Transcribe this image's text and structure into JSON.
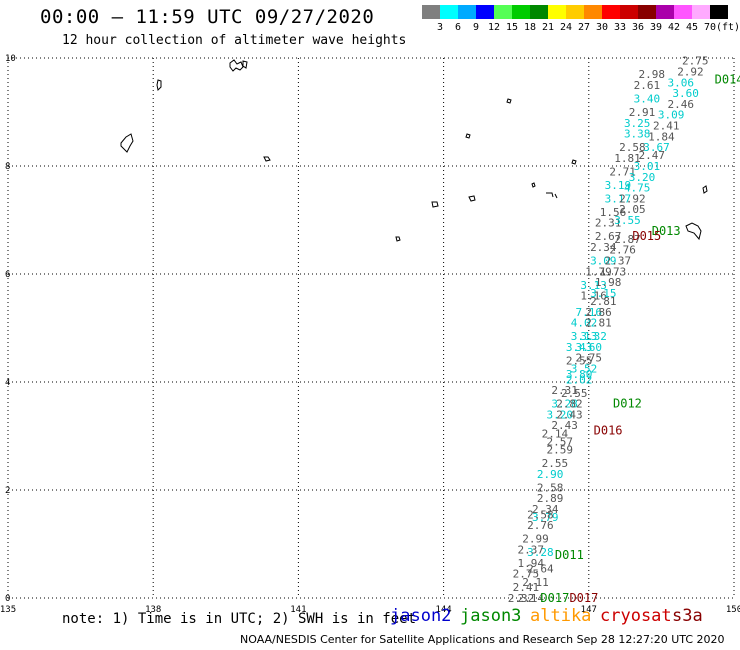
{
  "header": {
    "title": "00:00 – 11:59 UTC 09/27/2020",
    "subtitle": "12 hour collection of altimeter wave heights"
  },
  "colorbar": {
    "colors": [
      "#7f7f7f",
      "#00ffff",
      "#00aaff",
      "#0000ff",
      "#55ff55",
      "#00cc00",
      "#008800",
      "#ffff00",
      "#ffcc00",
      "#ff8800",
      "#ff0000",
      "#cc0000",
      "#880000",
      "#aa00aa",
      "#ff55ff",
      "#ffaaff",
      "#000000"
    ],
    "labels": [
      "3",
      "6",
      "9",
      "12",
      "15",
      "18",
      "21",
      "24",
      "27",
      "30",
      "33",
      "36",
      "39",
      "42",
      "45",
      "70",
      "(ft)"
    ]
  },
  "axes": {
    "x_ticks": [
      "135",
      "138",
      "141",
      "144",
      "147",
      "150"
    ],
    "y_ticks": [
      "0",
      "2",
      "4",
      "6",
      "8",
      "10"
    ],
    "grid": "dotted"
  },
  "track_labels": [
    {
      "text": "D014",
      "color": "#008800",
      "lon": 149.6,
      "lat": 9.6
    },
    {
      "text": "D013",
      "color": "#008800",
      "lon": 148.3,
      "lat": 6.8
    },
    {
      "text": "D015",
      "color": "#880000",
      "lon": 147.9,
      "lat": 6.7
    },
    {
      "text": "D012",
      "color": "#008800",
      "lon": 147.5,
      "lat": 3.6
    },
    {
      "text": "D016",
      "color": "#880000",
      "lon": 147.1,
      "lat": 3.1
    },
    {
      "text": "D011",
      "color": "#008800",
      "lon": 146.3,
      "lat": 0.8
    },
    {
      "text": "D017",
      "color": "#880000",
      "lon": 146.6,
      "lat": 0.0
    },
    {
      "text": "D017",
      "color": "#008800",
      "lon": 146.0,
      "lat": 0.0
    }
  ],
  "observations": [
    {
      "v": "2.75",
      "lon": 149.2,
      "lat": 9.95,
      "c": "#555555"
    },
    {
      "v": "2.92",
      "lon": 149.1,
      "lat": 9.75,
      "c": "#555555"
    },
    {
      "v": "2.98",
      "lon": 148.3,
      "lat": 9.7,
      "c": "#555555"
    },
    {
      "v": "3.06",
      "lon": 148.9,
      "lat": 9.55,
      "c": "#00cccc"
    },
    {
      "v": "2.61",
      "lon": 148.2,
      "lat": 9.5,
      "c": "#555555"
    },
    {
      "v": "3.60",
      "lon": 149.0,
      "lat": 9.35,
      "c": "#00cccc"
    },
    {
      "v": "3.40",
      "lon": 148.2,
      "lat": 9.25,
      "c": "#00cccc"
    },
    {
      "v": "2.46",
      "lon": 148.9,
      "lat": 9.15,
      "c": "#555555"
    },
    {
      "v": "2.91",
      "lon": 148.1,
      "lat": 9.0,
      "c": "#555555"
    },
    {
      "v": "3.09",
      "lon": 148.7,
      "lat": 8.95,
      "c": "#00cccc"
    },
    {
      "v": "3.25",
      "lon": 148.0,
      "lat": 8.8,
      "c": "#00cccc"
    },
    {
      "v": "2.41",
      "lon": 148.6,
      "lat": 8.75,
      "c": "#555555"
    },
    {
      "v": "3.38",
      "lon": 148.0,
      "lat": 8.6,
      "c": "#00cccc"
    },
    {
      "v": "1.84",
      "lon": 148.5,
      "lat": 8.55,
      "c": "#555555"
    },
    {
      "v": "2.58",
      "lon": 147.9,
      "lat": 8.35,
      "c": "#555555"
    },
    {
      "v": "3.67",
      "lon": 148.4,
      "lat": 8.35,
      "c": "#00cccc"
    },
    {
      "v": "2.47",
      "lon": 148.3,
      "lat": 8.2,
      "c": "#555555"
    },
    {
      "v": "1.81",
      "lon": 147.8,
      "lat": 8.15,
      "c": "#555555"
    },
    {
      "v": "3.01",
      "lon": 148.2,
      "lat": 8.0,
      "c": "#00cccc"
    },
    {
      "v": "2.71",
      "lon": 147.7,
      "lat": 7.9,
      "c": "#555555"
    },
    {
      "v": "3.20",
      "lon": 148.1,
      "lat": 7.8,
      "c": "#00cccc"
    },
    {
      "v": "3.19",
      "lon": 147.6,
      "lat": 7.65,
      "c": "#00cccc"
    },
    {
      "v": "4.75",
      "lon": 148.0,
      "lat": 7.6,
      "c": "#00cccc"
    },
    {
      "v": "3.17",
      "lon": 147.6,
      "lat": 7.4,
      "c": "#00cccc"
    },
    {
      "v": "2.92",
      "lon": 147.9,
      "lat": 7.4,
      "c": "#555555"
    },
    {
      "v": "1.56",
      "lon": 147.5,
      "lat": 7.15,
      "c": "#555555"
    },
    {
      "v": "2.05",
      "lon": 147.9,
      "lat": 7.2,
      "c": "#555555"
    },
    {
      "v": "2.31",
      "lon": 147.4,
      "lat": 6.95,
      "c": "#555555"
    },
    {
      "v": "3.55",
      "lon": 147.8,
      "lat": 7.0,
      "c": "#00cccc"
    },
    {
      "v": "2.67",
      "lon": 147.4,
      "lat": 6.7,
      "c": "#555555"
    },
    {
      "v": "2.87",
      "lon": 147.8,
      "lat": 6.65,
      "c": "#555555"
    },
    {
      "v": "2.34",
      "lon": 147.3,
      "lat": 6.5,
      "c": "#555555"
    },
    {
      "v": "2.76",
      "lon": 147.7,
      "lat": 6.45,
      "c": "#555555"
    },
    {
      "v": "3.09",
      "lon": 147.3,
      "lat": 6.25,
      "c": "#00cccc"
    },
    {
      "v": "2.37",
      "lon": 147.6,
      "lat": 6.25,
      "c": "#555555"
    },
    {
      "v": "1.79",
      "lon": 147.2,
      "lat": 6.05,
      "c": "#555555"
    },
    {
      "v": "1.73",
      "lon": 147.5,
      "lat": 6.05,
      "c": "#555555"
    },
    {
      "v": "3.13",
      "lon": 147.1,
      "lat": 5.8,
      "c": "#00cccc"
    },
    {
      "v": "1.98",
      "lon": 147.4,
      "lat": 5.85,
      "c": "#555555"
    },
    {
      "v": "1.16",
      "lon": 147.1,
      "lat": 5.6,
      "c": "#555555"
    },
    {
      "v": "3.15",
      "lon": 147.3,
      "lat": 5.65,
      "c": "#00cccc"
    },
    {
      "v": "2.81",
      "lon": 147.3,
      "lat": 5.5,
      "c": "#555555"
    },
    {
      "v": "7.16",
      "lon": 147.0,
      "lat": 5.3,
      "c": "#00cccc"
    },
    {
      "v": "2.86",
      "lon": 147.2,
      "lat": 5.3,
      "c": "#555555"
    },
    {
      "v": "4.02",
      "lon": 146.9,
      "lat": 5.1,
      "c": "#00cccc"
    },
    {
      "v": "2.81",
      "lon": 147.2,
      "lat": 5.1,
      "c": "#555555"
    },
    {
      "v": "3.13",
      "lon": 146.9,
      "lat": 4.85,
      "c": "#00cccc"
    },
    {
      "v": "3.32",
      "lon": 147.1,
      "lat": 4.85,
      "c": "#00cccc"
    },
    {
      "v": "3.43",
      "lon": 146.8,
      "lat": 4.65,
      "c": "#00cccc"
    },
    {
      "v": "3.60",
      "lon": 147.0,
      "lat": 4.65,
      "c": "#00cccc"
    },
    {
      "v": "2.55",
      "lon": 146.8,
      "lat": 4.4,
      "c": "#555555"
    },
    {
      "v": "2.75",
      "lon": 147.0,
      "lat": 4.45,
      "c": "#555555"
    },
    {
      "v": "3.52",
      "lon": 146.9,
      "lat": 4.25,
      "c": "#00cccc"
    },
    {
      "v": "3.80",
      "lon": 146.8,
      "lat": 4.15,
      "c": "#00cccc"
    },
    {
      "v": "2.02",
      "lon": 146.8,
      "lat": 4.05,
      "c": "#00cccc"
    },
    {
      "v": "2.31",
      "lon": 146.5,
      "lat": 3.85,
      "c": "#555555"
    },
    {
      "v": "2.55",
      "lon": 146.7,
      "lat": 3.8,
      "c": "#555555"
    },
    {
      "v": "3.28",
      "lon": 146.5,
      "lat": 3.6,
      "c": "#00cccc"
    },
    {
      "v": "2.82",
      "lon": 146.6,
      "lat": 3.6,
      "c": "#555555"
    },
    {
      "v": "3.20",
      "lon": 146.4,
      "lat": 3.4,
      "c": "#00cccc"
    },
    {
      "v": "2.43",
      "lon": 146.6,
      "lat": 3.4,
      "c": "#555555"
    },
    {
      "v": "2.43",
      "lon": 146.5,
      "lat": 3.2,
      "c": "#555555"
    },
    {
      "v": "2.14",
      "lon": 146.3,
      "lat": 3.05,
      "c": "#555555"
    },
    {
      "v": "2.57",
      "lon": 146.4,
      "lat": 2.9,
      "c": "#555555"
    },
    {
      "v": "2.59",
      "lon": 146.4,
      "lat": 2.75,
      "c": "#555555"
    },
    {
      "v": "2.55",
      "lon": 146.3,
      "lat": 2.5,
      "c": "#555555"
    },
    {
      "v": "2.90",
      "lon": 146.2,
      "lat": 2.3,
      "c": "#00cccc"
    },
    {
      "v": "2.58",
      "lon": 146.2,
      "lat": 2.05,
      "c": "#555555"
    },
    {
      "v": "2.89",
      "lon": 146.2,
      "lat": 1.85,
      "c": "#555555"
    },
    {
      "v": "2.34",
      "lon": 146.1,
      "lat": 1.65,
      "c": "#555555"
    },
    {
      "v": "3.79",
      "lon": 146.1,
      "lat": 1.5,
      "c": "#00cccc"
    },
    {
      "v": "2.76",
      "lon": 146.0,
      "lat": 1.35,
      "c": "#555555"
    },
    {
      "v": "2.58",
      "lon": 146.0,
      "lat": 1.55,
      "c": "#555555"
    },
    {
      "v": "2.99",
      "lon": 145.9,
      "lat": 1.1,
      "c": "#555555"
    },
    {
      "v": "3.28",
      "lon": 146.0,
      "lat": 0.85,
      "c": "#00cccc"
    },
    {
      "v": "2.37",
      "lon": 145.8,
      "lat": 0.9,
      "c": "#555555"
    },
    {
      "v": "1.94",
      "lon": 145.8,
      "lat": 0.65,
      "c": "#555555"
    },
    {
      "v": "2.64",
      "lon": 146.0,
      "lat": 0.55,
      "c": "#555555"
    },
    {
      "v": "2.75",
      "lon": 145.7,
      "lat": 0.45,
      "c": "#555555"
    },
    {
      "v": "2.11",
      "lon": 145.9,
      "lat": 0.3,
      "c": "#555555"
    },
    {
      "v": "2.41",
      "lon": 145.7,
      "lat": 0.2,
      "c": "#555555"
    },
    {
      "v": "2.32",
      "lon": 145.6,
      "lat": 0.0,
      "c": "#555555"
    },
    {
      "v": "2.14",
      "lon": 145.8,
      "lat": 0.0,
      "c": "#555555"
    }
  ],
  "footer": {
    "note": "note: 1) Time is in UTC; 2) SWH is in feet",
    "legend": [
      {
        "label": "jason2",
        "color": "#0000cc"
      },
      {
        "label": "jason3",
        "color": "#008800"
      },
      {
        "label": "altika",
        "color": "#ff9900"
      },
      {
        "label": "cryosat",
        "color": "#cc0000"
      },
      {
        "label": "s3a",
        "color": "#880000"
      }
    ],
    "credit": "NOAA/NESDIS Center for Satellite Applications and Research   Sep 28 12:27:20 UTC 2020"
  }
}
